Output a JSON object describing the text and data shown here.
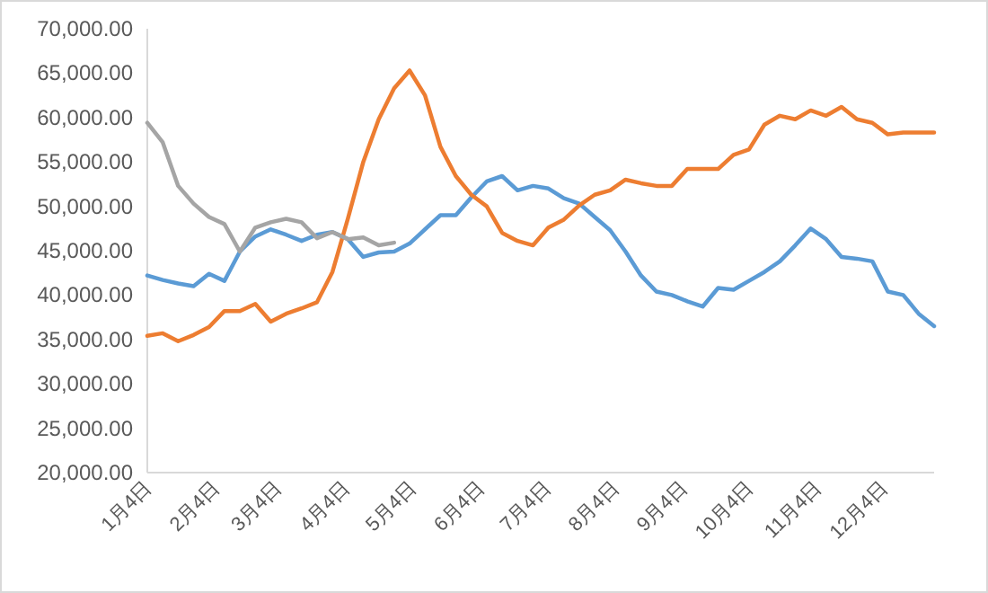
{
  "chart_data": {
    "type": "line",
    "x": [
      "--01-04",
      "--01-11",
      "--01-18",
      "--01-25",
      "--02-01",
      "--02-08",
      "--02-15",
      "--02-22",
      "--03-01",
      "--03-08",
      "--03-15",
      "--03-22",
      "--03-29",
      "--04-05",
      "--04-12",
      "--04-19",
      "--04-26",
      "--05-03",
      "--05-10",
      "--05-17",
      "--05-24",
      "--05-31",
      "--06-07",
      "--06-14",
      "--06-21",
      "--06-28",
      "--07-05",
      "--07-12",
      "--07-19",
      "--07-26",
      "--08-02",
      "--08-09",
      "--08-16",
      "--08-23",
      "--08-30",
      "--09-06",
      "--09-13",
      "--09-20",
      "--09-27",
      "--10-04",
      "--10-11",
      "--10-18",
      "--10-25",
      "--11-01",
      "--11-08",
      "--11-15",
      "--11-22",
      "--11-29",
      "--12-06",
      "--12-13",
      "--12-20",
      "--12-27"
    ],
    "series": [
      {
        "color": "#5b9bd5",
        "values": [
          42200,
          41700,
          41300,
          41000,
          42400,
          41600,
          44900,
          46600,
          47400,
          46800,
          46100,
          46800,
          47100,
          46300,
          44300,
          44800,
          44900,
          45800,
          47400,
          49000,
          49000,
          51000,
          52800,
          53400,
          51800,
          52300,
          52000,
          50900,
          50300,
          48800,
          47300,
          44900,
          42200,
          40400,
          40000,
          39300,
          38700,
          40800,
          40600,
          41600,
          42600,
          43800,
          45600,
          47500,
          46300,
          44300,
          44100,
          43800,
          40400,
          40000,
          37900,
          36500
        ]
      },
      {
        "color": "#ed7d31",
        "values": [
          35400,
          35700,
          34800,
          35500,
          36400,
          38200,
          38200,
          39000,
          37000,
          37900,
          38500,
          39200,
          42600,
          48600,
          55000,
          59800,
          63300,
          65300,
          62500,
          56700,
          53400,
          51300,
          50000,
          47000,
          46100,
          45600,
          47600,
          48500,
          50100,
          51300,
          51800,
          53000,
          52600,
          52300,
          52300,
          54200,
          54200,
          54200,
          55800,
          56400,
          59200,
          60200,
          59800,
          60800,
          60200,
          61200,
          59800,
          59400,
          58100,
          58300,
          58300,
          58300
        ]
      },
      {
        "color": "#a5a5a5",
        "values": [
          59400,
          57200,
          52300,
          50300,
          48800,
          48000,
          44900,
          47600,
          48200,
          48600,
          48200,
          46400,
          47100,
          46300,
          46500,
          45600,
          45900,
          null,
          null,
          null,
          null,
          null,
          null,
          null,
          null,
          null,
          null,
          null,
          null,
          null,
          null,
          null,
          null,
          null,
          null,
          null,
          null,
          null,
          null,
          null,
          null,
          null,
          null,
          null,
          null,
          null,
          null,
          null,
          null,
          null,
          null,
          null
        ]
      }
    ],
    "xlim": [
      "--01-04",
      "--12-27"
    ],
    "xticks": [
      {
        "value": "--01-04",
        "label": "1月4日"
      },
      {
        "value": "--02-04",
        "label": "2月4日"
      },
      {
        "value": "--03-04",
        "label": "3月4日"
      },
      {
        "value": "--04-04",
        "label": "4月4日"
      },
      {
        "value": "--05-04",
        "label": "5月4日"
      },
      {
        "value": "--06-04",
        "label": "6月4日"
      },
      {
        "value": "--07-04",
        "label": "7月4日"
      },
      {
        "value": "--08-04",
        "label": "8月4日"
      },
      {
        "value": "--09-04",
        "label": "9月4日"
      },
      {
        "value": "--10-04",
        "label": "10月4日"
      },
      {
        "value": "--11-04",
        "label": "11月4日"
      },
      {
        "value": "--12-04",
        "label": "12月4日"
      }
    ],
    "ylim": [
      20000,
      70000
    ],
    "yticks": [
      {
        "value": 20000,
        "label": "20,000.00"
      },
      {
        "value": 25000,
        "label": "25,000.00"
      },
      {
        "value": 30000,
        "label": "30,000.00"
      },
      {
        "value": 35000,
        "label": "35,000.00"
      },
      {
        "value": 40000,
        "label": "40,000.00"
      },
      {
        "value": 45000,
        "label": "45,000.00"
      },
      {
        "value": 50000,
        "label": "50,000.00"
      },
      {
        "value": 55000,
        "label": "55,000.00"
      },
      {
        "value": 60000,
        "label": "60,000.00"
      },
      {
        "value": 65000,
        "label": "65,000.00"
      },
      {
        "value": 70000,
        "label": "70,000.00"
      }
    ],
    "marker": "none",
    "line_style": "solid"
  }
}
